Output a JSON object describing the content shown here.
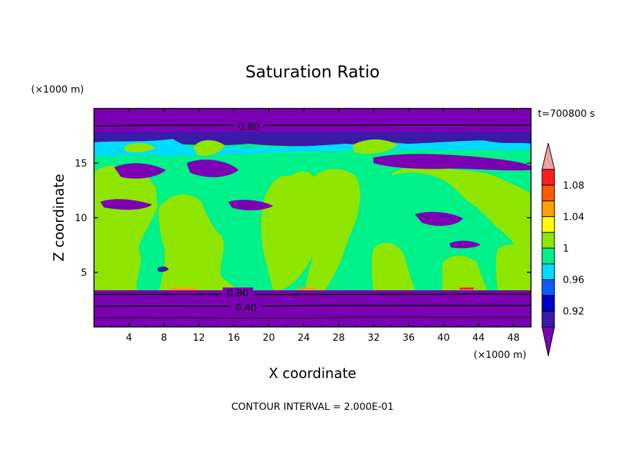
{
  "chart_data": {
    "type": "heatmap",
    "title": "Saturation Ratio",
    "xlabel": "X coordinate",
    "ylabel": "Z coordinate",
    "x_unit": "(×1000 m)",
    "y_unit": "(×1000 m)",
    "time_label": "t=700800 s",
    "footer": "CONTOUR INTERVAL = 2.000E-01",
    "xlim": [
      0,
      50
    ],
    "ylim": [
      0,
      20
    ],
    "x_ticks": [
      "4",
      "8",
      "12",
      "16",
      "20",
      "24",
      "28",
      "32",
      "36",
      "40",
      "44",
      "48"
    ],
    "y_ticks": [
      "5",
      "10",
      "15"
    ],
    "contour_labels": [
      "0.80",
      "0.80",
      "0.40"
    ],
    "colorbar": {
      "labels": [
        "0.92",
        "0.96",
        "1",
        "1.04",
        "1.08"
      ],
      "levels": [
        0.9,
        0.92,
        0.94,
        0.96,
        0.98,
        1.0,
        1.02,
        1.04,
        1.06,
        1.08,
        1.1
      ],
      "colors": [
        "#7b00b4",
        "#3a1aa8",
        "#0000c8",
        "#0a5cff",
        "#00dcff",
        "#00f08a",
        "#8ee600",
        "#ffff00",
        "#ffa000",
        "#ff5a00",
        "#ff1e1e",
        "#f0a0a0"
      ]
    },
    "layers": [
      {
        "z_range": [
          19,
          20
        ],
        "class": "<0.90"
      },
      {
        "z_range": [
          17.5,
          19
        ],
        "class": "0.92-0.96"
      },
      {
        "z_range": [
          3.2,
          17
        ],
        "class": "0.98-1.02"
      },
      {
        "z_range": [
          0,
          3.2
        ],
        "class": "<0.90"
      }
    ]
  }
}
